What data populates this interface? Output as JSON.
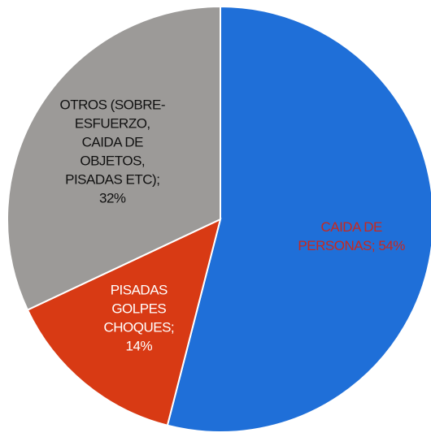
{
  "chart_data": {
    "type": "pie",
    "values": [
      54,
      14,
      32
    ],
    "value_labels": [
      [
        "CAIDA DE",
        "PERSONAS; 54%"
      ],
      [
        "PISADAS",
        "GOLPES",
        "CHOQUES;",
        "14%"
      ],
      [
        "OTROS (SOBRE-",
        "ESFUERZO,",
        "CAIDA DE",
        "OBJETOS,",
        "PISADAS ETC);",
        "32%"
      ]
    ],
    "colors": [
      "#1f6fd8",
      "#d83a14",
      "#9c9a98"
    ],
    "label_colors": [
      "#c8281e",
      "#ffffff",
      "#111111"
    ],
    "start_angle": 0,
    "direction": "clockwise"
  }
}
